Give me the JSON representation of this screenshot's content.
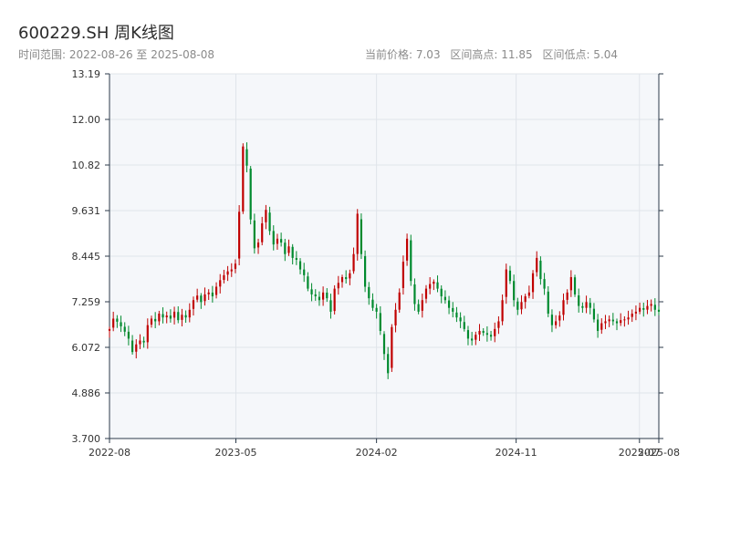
{
  "header": {
    "title": "600229.SH 周K线图",
    "date_range": "时间范围: 2022-08-26 至 2025-08-08",
    "current_price": "当前价格: 7.03",
    "range_high": "区间高点: 11.85",
    "range_low": "区间低点: 5.04"
  },
  "colors": {
    "up": "#c00000",
    "down": "#008a2e",
    "plot_bg": "#f5f7fa",
    "grid": "#e0e4ea",
    "axis": "#2b3a4a"
  },
  "chart_data": {
    "type": "candlestick",
    "title": "600229.SH 周K线图",
    "ylim": [
      3.7,
      13.19
    ],
    "y_ticks": [
      "3.700",
      "4.886",
      "6.072",
      "7.259",
      "8.445",
      "9.631",
      "10.82",
      "12.00",
      "13.19"
    ],
    "x_ticks": [
      "2022-08",
      "2023-05",
      "2024-02",
      "2024-11",
      "2025-07",
      "2025-08"
    ],
    "grid": true,
    "first_week": "2022-08-26",
    "last_week": "2025-08-08",
    "closes": [
      6.55,
      6.82,
      6.74,
      6.62,
      6.48,
      6.3,
      5.95,
      6.15,
      6.25,
      6.2,
      6.65,
      6.82,
      6.75,
      6.95,
      6.85,
      6.9,
      6.82,
      7.0,
      6.78,
      6.92,
      6.85,
      7.05,
      7.3,
      7.42,
      7.25,
      7.45,
      7.5,
      7.4,
      7.65,
      7.82,
      7.95,
      8.05,
      8.1,
      8.25,
      9.6,
      11.3,
      10.8,
      9.4,
      8.65,
      8.8,
      9.3,
      9.65,
      9.1,
      8.75,
      8.9,
      8.8,
      8.5,
      8.7,
      8.4,
      8.35,
      8.1,
      7.95,
      7.6,
      7.45,
      7.4,
      7.3,
      7.5,
      7.35,
      7.0,
      7.6,
      7.75,
      7.9,
      7.85,
      8.0,
      8.5,
      9.55,
      8.5,
      7.65,
      7.35,
      7.1,
      7.0,
      6.5,
      5.9,
      5.4,
      6.6,
      7.05,
      7.5,
      8.3,
      8.9,
      7.8,
      7.2,
      7.0,
      7.3,
      7.6,
      7.72,
      7.78,
      7.6,
      7.4,
      7.3,
      7.1,
      7.0,
      6.85,
      6.75,
      6.55,
      6.3,
      6.25,
      6.4,
      6.5,
      6.45,
      6.4,
      6.35,
      6.55,
      6.75,
      7.3,
      8.1,
      7.8,
      7.3,
      7.05,
      7.25,
      7.4,
      7.5,
      8.0,
      8.4,
      7.85,
      7.6,
      6.95,
      6.65,
      6.75,
      6.9,
      7.3,
      7.5,
      7.9,
      7.45,
      7.15,
      7.1,
      7.25,
      7.1,
      6.8,
      6.5,
      6.7,
      6.75,
      6.8,
      6.75,
      6.7,
      6.78,
      6.8,
      6.85,
      6.95,
      7.0,
      7.1,
      7.05,
      7.15,
      7.2,
      7.05,
      7.0
    ],
    "y_label": "",
    "x_label": ""
  }
}
